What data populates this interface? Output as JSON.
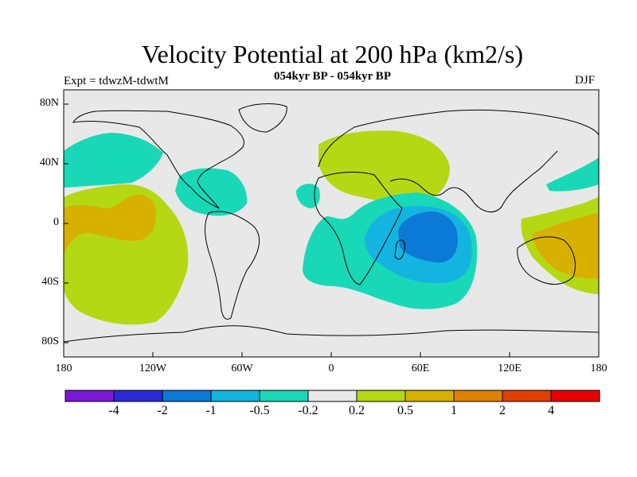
{
  "title": "Velocity Potential at 200 hPa (km2/s)",
  "subtitle": "054kyr BP - 054kyr BP",
  "experiment_label": "Expt = tdwzM-tdwtM",
  "season": "DJF",
  "axes": {
    "y_ticks": [
      "80N",
      "40N",
      "0",
      "40S",
      "80S"
    ],
    "x_ticks": [
      "180",
      "120W",
      "60W",
      "0",
      "60E",
      "120E",
      "180"
    ]
  },
  "colorbar": {
    "colors": [
      "#7b18d6",
      "#2a2ad6",
      "#0a7ad6",
      "#14b4e0",
      "#18d8b8",
      "#e8e8e8",
      "#b4d814",
      "#d8b000",
      "#e08000",
      "#e04000",
      "#e80000"
    ],
    "labels": [
      "-4",
      "-2",
      "-1",
      "-0.5",
      "-0.2",
      "0.2",
      "0.5",
      "1",
      "2",
      "4"
    ]
  },
  "colors": {
    "ocean": "#e8e8e8",
    "light_green": "#b4d814",
    "gold": "#d8b000",
    "cyan_green": "#18d8b8",
    "light_blue": "#14b4e0",
    "blue": "#0a7ad6"
  }
}
